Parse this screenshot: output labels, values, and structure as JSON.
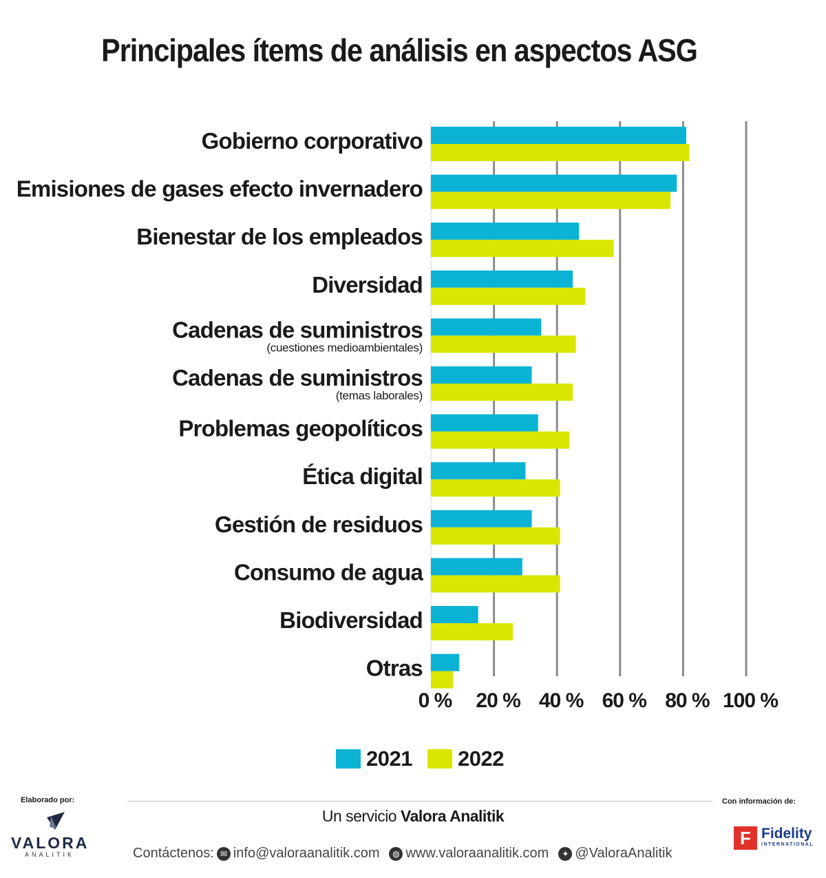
{
  "title": "Principales ítems de análisis en aspectos ASG",
  "chart_data": {
    "type": "bar",
    "orientation": "horizontal",
    "title": "Principales ítems de análisis en aspectos ASG",
    "categories": [
      {
        "label": "Gobierno corporativo",
        "sublabel": ""
      },
      {
        "label": "Emisiones de gases efecto invernadero",
        "sublabel": ""
      },
      {
        "label": "Bienestar de los empleados",
        "sublabel": ""
      },
      {
        "label": "Diversidad",
        "sublabel": ""
      },
      {
        "label": "Cadenas de suministros",
        "sublabel": "(cuestiones medioambientales)"
      },
      {
        "label": "Cadenas de suministros",
        "sublabel": "(temas laborales)"
      },
      {
        "label": "Problemas geopolíticos",
        "sublabel": ""
      },
      {
        "label": "Ética digital",
        "sublabel": ""
      },
      {
        "label": "Gestión de residuos",
        "sublabel": ""
      },
      {
        "label": "Consumo de agua",
        "sublabel": ""
      },
      {
        "label": "Biodiversidad",
        "sublabel": ""
      },
      {
        "label": "Otras",
        "sublabel": ""
      }
    ],
    "series": [
      {
        "name": "2021",
        "color": "#0ab3d3",
        "values": [
          81,
          78,
          47,
          45,
          35,
          32,
          34,
          30,
          32,
          29,
          15,
          9
        ]
      },
      {
        "name": "2022",
        "color": "#d9e600",
        "values": [
          82,
          76,
          58,
          49,
          46,
          45,
          44,
          41,
          41,
          41,
          26,
          7
        ]
      }
    ],
    "xlim": [
      0,
      100
    ],
    "xticks": [
      0,
      20,
      40,
      60,
      80,
      100
    ],
    "xtick_labels": [
      "0 %",
      "20 %",
      "40 %",
      "60 %",
      "80 %",
      "100 %"
    ],
    "grid": true,
    "legend_position": "bottom-center"
  },
  "legend": {
    "items": [
      "2021",
      "2022"
    ]
  },
  "footer": {
    "elaborado": "Elaborado por:",
    "con_info": "Con información de:",
    "servicio_prefix": "Un servicio ",
    "servicio_brand": "Valora Analitik",
    "valora_word": "VALORA",
    "valora_sub": "ANALITIK",
    "contact_label": "Contáctenos:",
    "email": "info@valoraanalitik.com",
    "web": "www.valoraanalitik.com",
    "twitter": "@ValoraAnalitik",
    "fidelity": "Fidelity",
    "fidelity_sub": "INTERNATIONAL",
    "fidelity_mark": "F"
  }
}
